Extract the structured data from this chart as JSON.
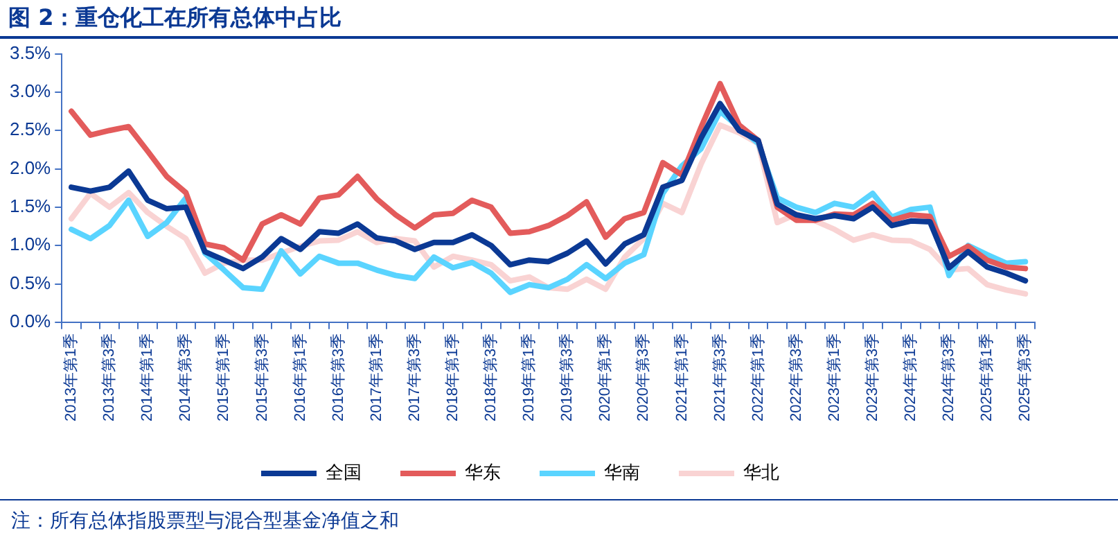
{
  "chart_data": {
    "type": "line",
    "title": "图 2：重仓化工在所有总体中占比",
    "categories": [
      "2013年第1季",
      null,
      "2013年第3季",
      null,
      "2014年第1季",
      null,
      "2014年第3季",
      null,
      "2015年第1季",
      null,
      "2015年第3季",
      null,
      "2016年第1季",
      null,
      "2016年第3季",
      null,
      "2017年第1季",
      null,
      "2017年第3季",
      null,
      "2018年第1季",
      null,
      "2018年第3季",
      null,
      "2019年第1季",
      null,
      "2019年第3季",
      null,
      "2020年第1季",
      null,
      "2020年第3季",
      null,
      "2021年第1季",
      null,
      "2021年第3季",
      null,
      "2022年第1季",
      null,
      "2022年第3季",
      null,
      "2023年第1季",
      null,
      "2023年第3季",
      null,
      "2024年第1季",
      null,
      "2024年第3季",
      null,
      "2025年第1季",
      null,
      "2025年第3季"
    ],
    "series": [
      {
        "name": "全国",
        "color": "#0b3994",
        "values": [
          1.76,
          1.71,
          1.76,
          1.97,
          1.59,
          1.48,
          1.5,
          0.92,
          0.81,
          0.7,
          0.85,
          1.09,
          0.95,
          1.18,
          1.16,
          1.28,
          1.1,
          1.06,
          0.95,
          1.04,
          1.04,
          1.14,
          1.0,
          0.75,
          0.81,
          0.79,
          0.9,
          1.06,
          0.76,
          1.02,
          1.14,
          1.76,
          1.85,
          2.4,
          2.85,
          2.5,
          2.37,
          1.54,
          1.4,
          1.35,
          1.39,
          1.35,
          1.5,
          1.26,
          1.32,
          1.31,
          0.71,
          0.92,
          0.72,
          0.64,
          0.54
        ]
      },
      {
        "name": "华东",
        "color": "#e35b5b",
        "values": [
          2.75,
          2.44,
          2.5,
          2.55,
          2.23,
          1.9,
          1.69,
          1.02,
          0.97,
          0.81,
          1.28,
          1.4,
          1.28,
          1.62,
          1.66,
          1.9,
          1.61,
          1.4,
          1.23,
          1.4,
          1.42,
          1.59,
          1.5,
          1.16,
          1.18,
          1.26,
          1.39,
          1.57,
          1.11,
          1.35,
          1.43,
          2.08,
          1.92,
          2.54,
          3.11,
          2.57,
          2.37,
          1.5,
          1.33,
          1.33,
          1.41,
          1.4,
          1.55,
          1.33,
          1.4,
          1.38,
          0.86,
          0.99,
          0.81,
          0.72,
          0.7
        ]
      },
      {
        "name": "华南",
        "color": "#5ad4ff",
        "values": [
          1.21,
          1.09,
          1.26,
          1.59,
          1.12,
          1.3,
          1.62,
          0.9,
          0.68,
          0.45,
          0.43,
          0.93,
          0.63,
          0.86,
          0.77,
          0.77,
          0.68,
          0.61,
          0.57,
          0.85,
          0.71,
          0.78,
          0.64,
          0.39,
          0.49,
          0.45,
          0.56,
          0.75,
          0.57,
          0.77,
          0.88,
          1.68,
          2.04,
          2.26,
          2.75,
          2.54,
          2.33,
          1.62,
          1.5,
          1.43,
          1.55,
          1.5,
          1.68,
          1.37,
          1.47,
          1.5,
          0.61,
          1.0,
          0.88,
          0.77,
          0.79
        ]
      },
      {
        "name": "华北",
        "color": "#f9d3d3",
        "values": [
          1.35,
          1.68,
          1.5,
          1.69,
          1.43,
          1.25,
          1.09,
          0.64,
          0.77,
          0.81,
          0.81,
          0.9,
          0.99,
          1.06,
          1.07,
          1.18,
          1.04,
          1.09,
          1.06,
          0.72,
          0.86,
          0.81,
          0.75,
          0.54,
          0.59,
          0.45,
          0.43,
          0.56,
          0.43,
          0.85,
          1.09,
          1.55,
          1.43,
          2.06,
          2.57,
          2.47,
          2.33,
          1.3,
          1.41,
          1.32,
          1.21,
          1.07,
          1.14,
          1.07,
          1.06,
          0.95,
          0.68,
          0.7,
          0.49,
          0.42,
          0.37
        ]
      }
    ],
    "ylim": [
      0,
      3.5
    ],
    "yticks": [
      {
        "value": 0,
        "label": "0.0%"
      },
      {
        "value": 0.5,
        "label": "0.5%"
      },
      {
        "value": 1,
        "label": "1.0%"
      },
      {
        "value": 1.5,
        "label": "1.5%"
      },
      {
        "value": 2,
        "label": "2.0%"
      },
      {
        "value": 2.5,
        "label": "2.5%"
      },
      {
        "value": 3,
        "label": "3.0%"
      },
      {
        "value": 3.5,
        "label": "3.5%"
      }
    ],
    "grid": false,
    "legend": "bottom",
    "marker": "none",
    "line_style": "solid",
    "annotations": [
      "注：所有总体指股票型与混合型基金净值之和"
    ]
  }
}
